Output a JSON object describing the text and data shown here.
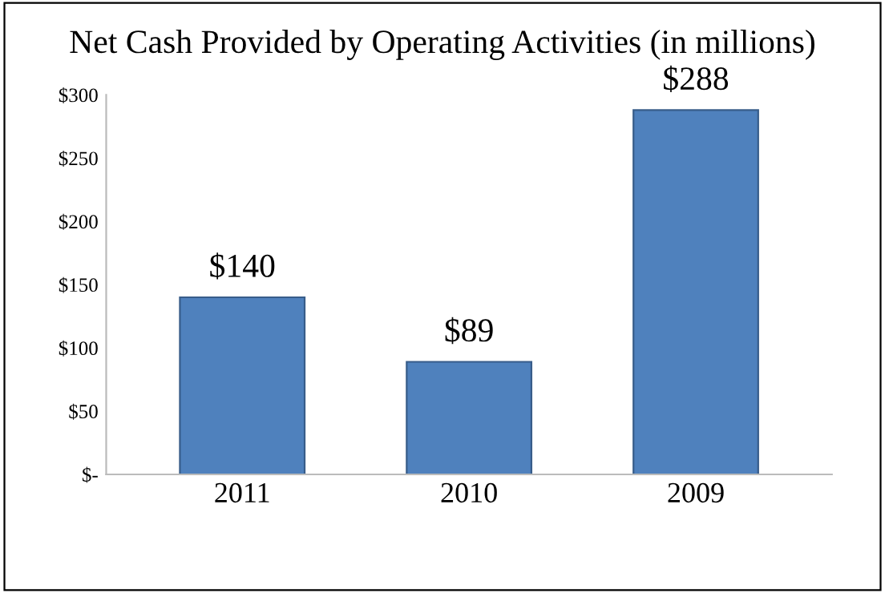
{
  "chart_data": {
    "type": "bar",
    "title": "Net Cash Provided by Operating Activities (in millions)",
    "categories": [
      "2011",
      "2010",
      "2009"
    ],
    "values": [
      140,
      89,
      288
    ],
    "value_labels": [
      "$140",
      "$89",
      "$288"
    ],
    "color": "#4f81bd",
    "ylim": [
      0,
      300
    ],
    "yticks": [
      {
        "value": 0,
        "label": "$-"
      },
      {
        "value": 50,
        "label": "$50"
      },
      {
        "value": 100,
        "label": "$100"
      },
      {
        "value": 150,
        "label": "$150"
      },
      {
        "value": 200,
        "label": "$200"
      },
      {
        "value": 250,
        "label": "$250"
      },
      {
        "value": 300,
        "label": "$300"
      }
    ],
    "grid": false
  }
}
